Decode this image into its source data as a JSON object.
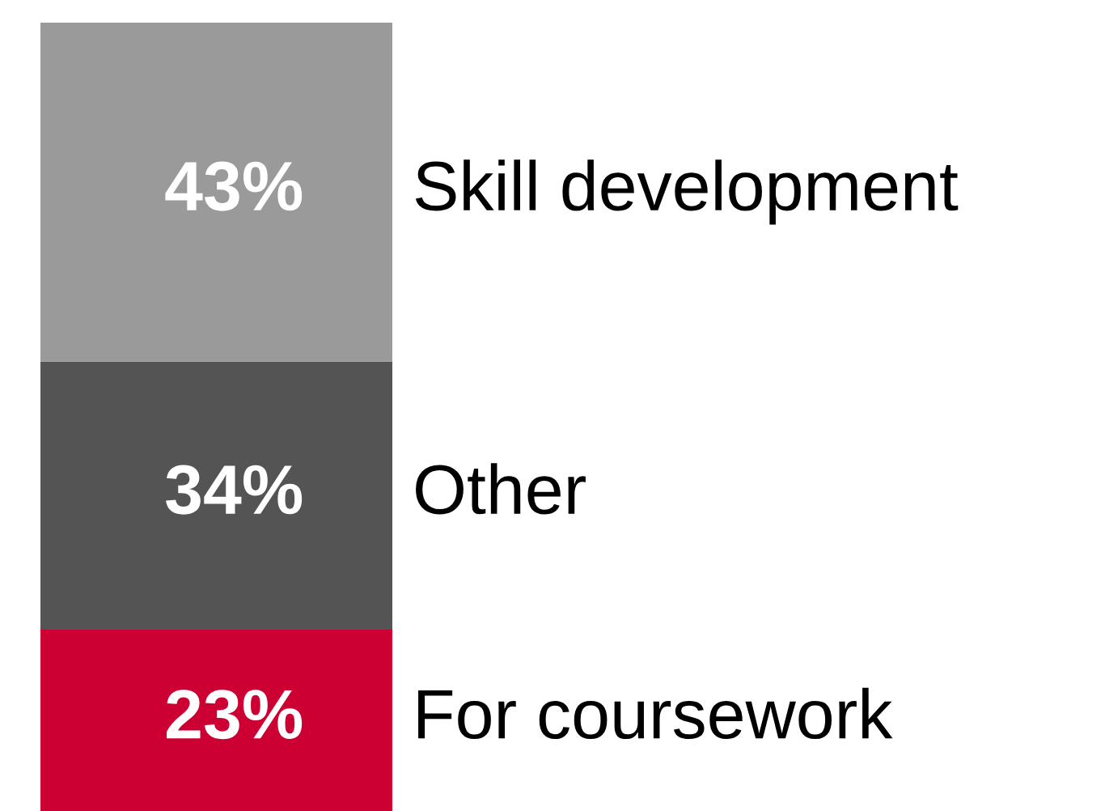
{
  "chart_data": {
    "type": "bar",
    "stacked": true,
    "categories": [
      null
    ],
    "series": [
      {
        "name": "For coursework",
        "color": "#cc0033",
        "values": [
          23
        ],
        "value_labels": [
          "23%"
        ]
      },
      {
        "name": "Other",
        "color": "#545454",
        "values": [
          34
        ],
        "value_labels": [
          "34%"
        ]
      },
      {
        "name": "Skill development",
        "color": "#9a9a9a",
        "values": [
          43
        ],
        "value_labels": [
          "43%"
        ]
      }
    ]
  }
}
